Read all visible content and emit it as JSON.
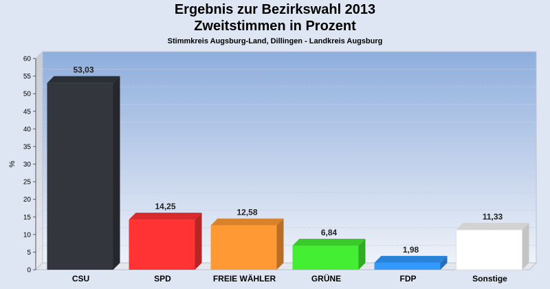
{
  "chart_data": {
    "type": "bar",
    "title": "Ergebnis zur Bezirkswahl 2013",
    "title2": "Zweitstimmen in Prozent",
    "subtitle": "Stimmkreis Augsburg-Land, Dillingen - Landkreis Augsburg",
    "ylabel": "%",
    "xlabel": "",
    "ylim": [
      0,
      60
    ],
    "yticks": [
      0,
      5,
      10,
      15,
      20,
      25,
      30,
      35,
      40,
      45,
      50,
      55,
      60
    ],
    "grid": true,
    "categories": [
      "CSU",
      "SPD",
      "FREIE WÄHLER",
      "GRÜNE",
      "FDP",
      "Sonstige"
    ],
    "values": [
      53.03,
      14.25,
      12.58,
      6.84,
      1.98,
      11.33
    ],
    "value_labels": [
      "53,03",
      "14,25",
      "12,58",
      "6,84",
      "1,98",
      "11,33"
    ],
    "colors": [
      "#33363d",
      "#ff3333",
      "#ff9933",
      "#44ee33",
      "#3399ff",
      "#ffffff"
    ]
  }
}
